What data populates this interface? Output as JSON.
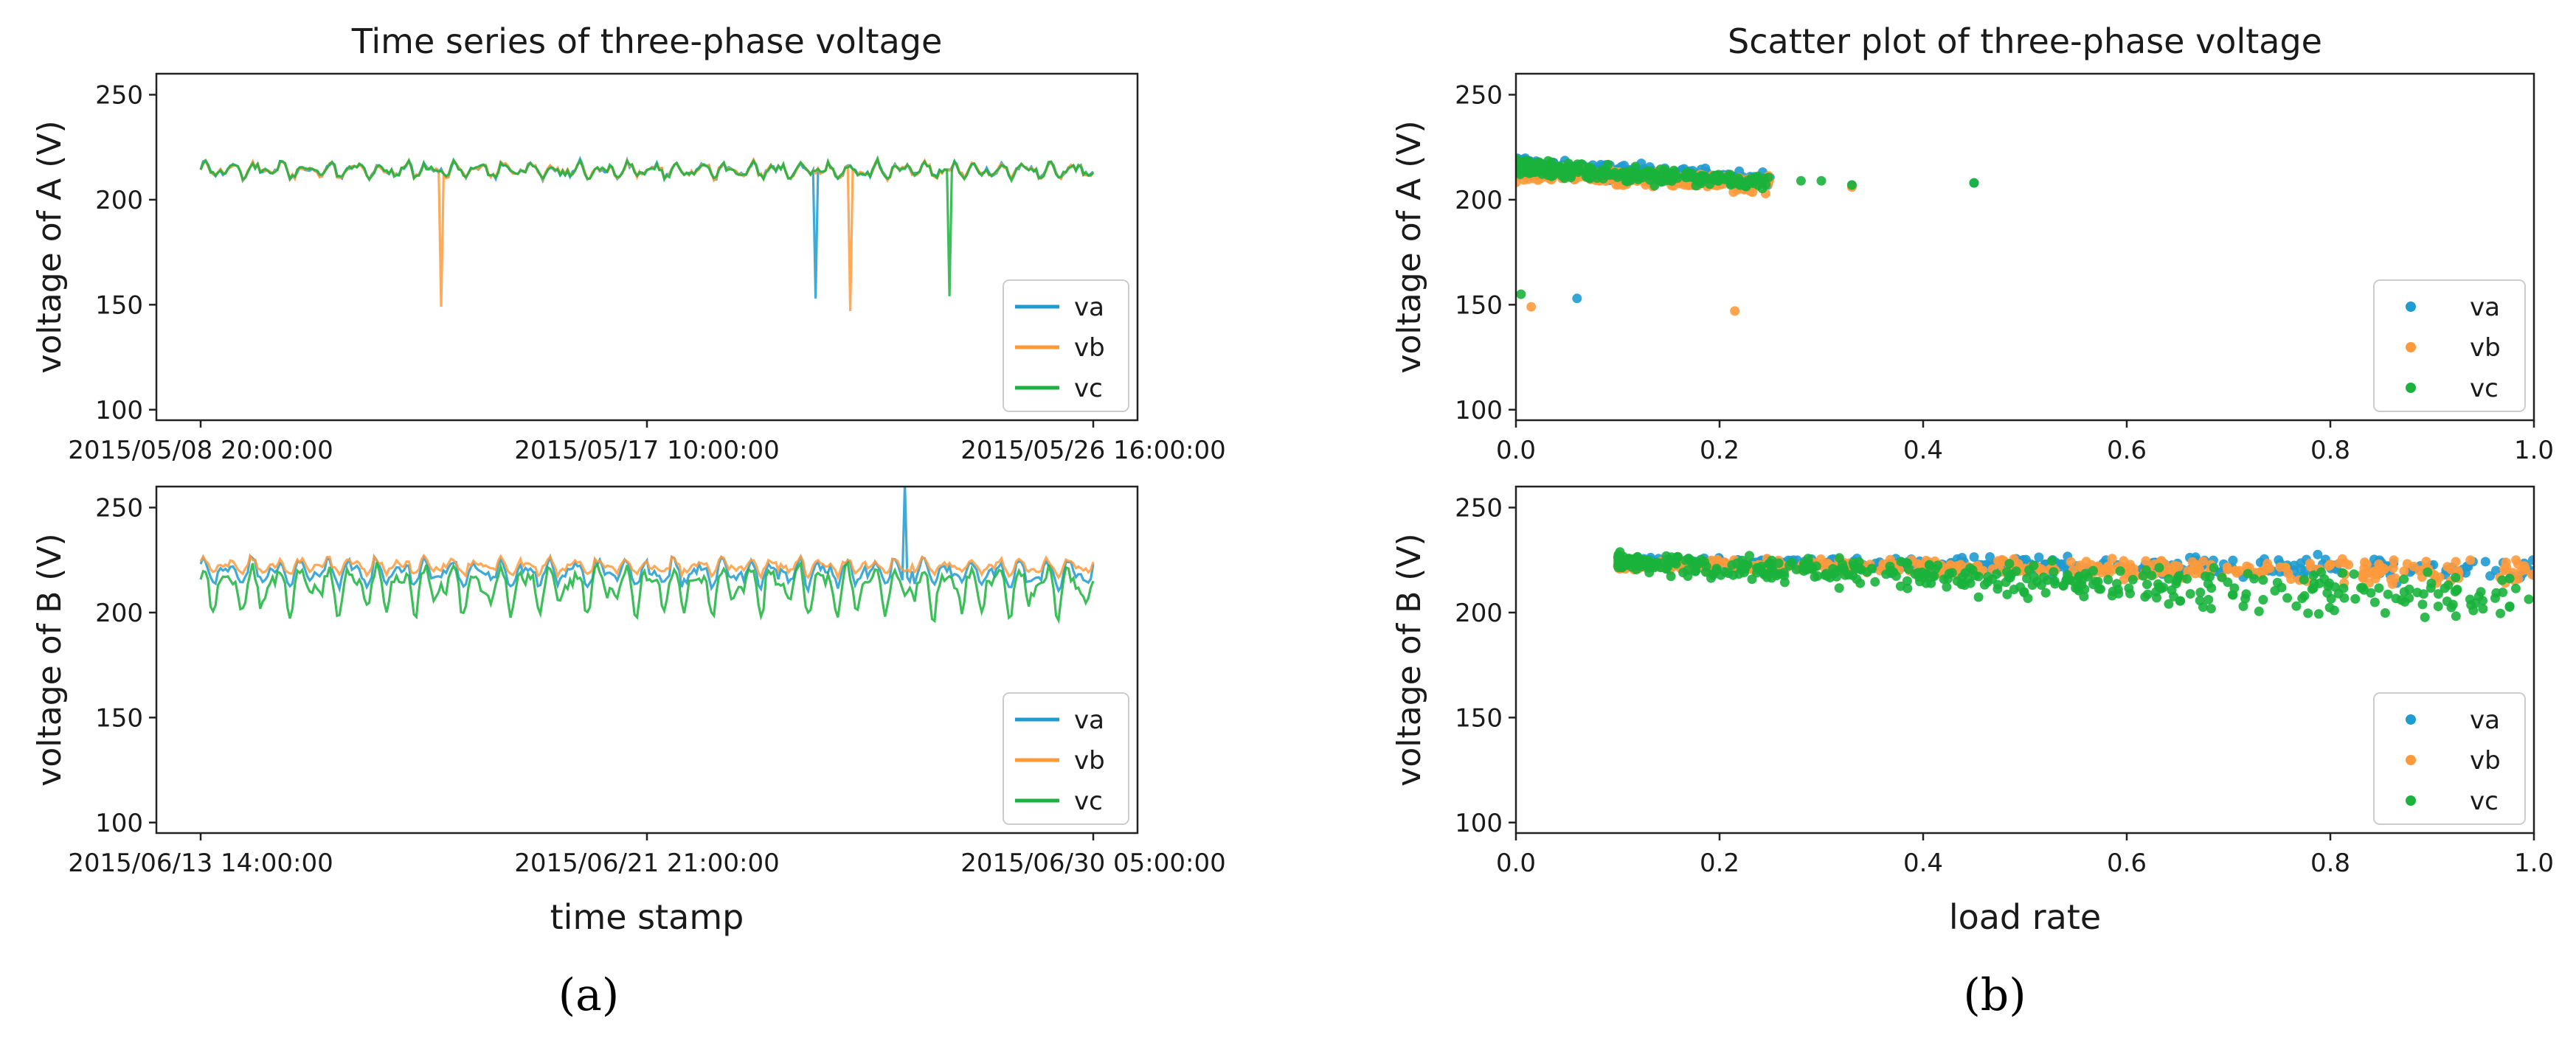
{
  "figure": {
    "caption_a": "(a)",
    "caption_b": "(b)"
  },
  "colors": {
    "va": "#1f9bd0",
    "vb": "#ff9a3c",
    "vc": "#1ab33c",
    "axis": "#222222"
  },
  "chart_data": [
    {
      "id": "ts_A",
      "type": "line",
      "title": "Time series of three-phase voltage",
      "xlabel": "",
      "ylabel": "voltage of A (V)",
      "ylim": [
        95,
        260
      ],
      "yticks": [
        100,
        150,
        200,
        250
      ],
      "xlim": [
        0,
        1
      ],
      "xticks": [
        {
          "pos": 0.0,
          "label": "2015/05/08 20:00:00"
        },
        {
          "pos": 0.5,
          "label": "2015/05/17 10:00:00"
        },
        {
          "pos": 1.0,
          "label": "2015/05/26 16:00:00"
        }
      ],
      "legend": [
        "va",
        "vb",
        "vc"
      ],
      "legend_loc": "lower-right",
      "series": [
        {
          "name": "va",
          "base": 214,
          "amp": 4,
          "noise": 1.5,
          "spikes": [
            [
              0.69,
              153
            ]
          ]
        },
        {
          "name": "vb",
          "base": 214,
          "amp": 4,
          "noise": 1.5,
          "spikes": [
            [
              0.27,
              149
            ],
            [
              0.728,
              147
            ]
          ]
        },
        {
          "name": "vc",
          "base": 214,
          "amp": 4,
          "noise": 1.5,
          "spikes": [
            [
              0.84,
              154
            ]
          ]
        }
      ]
    },
    {
      "id": "ts_B",
      "type": "line",
      "title": "",
      "xlabel": "time stamp",
      "ylabel": "voltage of B (V)",
      "ylim": [
        95,
        260
      ],
      "yticks": [
        100,
        150,
        200,
        250
      ],
      "xlim": [
        0,
        1
      ],
      "xticks": [
        {
          "pos": 0.0,
          "label": "2015/06/13 14:00:00"
        },
        {
          "pos": 0.5,
          "label": "2015/06/21 21:00:00"
        },
        {
          "pos": 1.0,
          "label": "2015/06/30 05:00:00"
        }
      ],
      "legend": [
        "va",
        "vb",
        "vc"
      ],
      "legend_loc": "lower-right",
      "series": [
        {
          "name": "va",
          "base": 219,
          "amp": 7,
          "noise": 2,
          "spikes": [
            [
              0.79,
              262
            ]
          ]
        },
        {
          "name": "vb",
          "base": 222,
          "amp": 4,
          "noise": 1.5,
          "spikes": []
        },
        {
          "name": "vc",
          "base": 214,
          "amp": 13,
          "noise": 3,
          "spikes": []
        }
      ]
    },
    {
      "id": "sc_A",
      "type": "scatter",
      "title": "Scatter plot of three-phase voltage",
      "xlabel": "",
      "ylabel": "voltage of A (V)",
      "ylim": [
        95,
        260
      ],
      "yticks": [
        100,
        150,
        200,
        250
      ],
      "xlim": [
        0,
        1
      ],
      "xticks": [
        {
          "pos": 0.0,
          "label": "0.0"
        },
        {
          "pos": 0.2,
          "label": "0.2"
        },
        {
          "pos": 0.4,
          "label": "0.4"
        },
        {
          "pos": 0.6,
          "label": "0.6"
        },
        {
          "pos": 0.8,
          "label": "0.8"
        },
        {
          "pos": 1.0,
          "label": "1.0"
        }
      ],
      "legend": [
        "va",
        "vb",
        "vc"
      ],
      "legend_loc": "lower-right",
      "series": [
        {
          "name": "va",
          "cluster": [
            0.0,
            0.25,
            216,
            4
          ],
          "points": [
            [
              0.06,
              153
            ],
            [
              0.33,
              207
            ],
            [
              0.45,
              208
            ]
          ]
        },
        {
          "name": "vb",
          "cluster": [
            0.0,
            0.25,
            213,
            4
          ],
          "points": [
            [
              0.015,
              149
            ],
            [
              0.215,
              147
            ],
            [
              0.33,
              206
            ]
          ]
        },
        {
          "name": "vc",
          "cluster": [
            0.0,
            0.25,
            215,
            4
          ],
          "points": [
            [
              0.005,
              155
            ],
            [
              0.28,
              209
            ],
            [
              0.3,
              209
            ],
            [
              0.33,
              207
            ],
            [
              0.45,
              208
            ]
          ]
        }
      ]
    },
    {
      "id": "sc_B",
      "type": "scatter",
      "title": "",
      "xlabel": "load rate",
      "ylabel": "voltage of B (V)",
      "ylim": [
        95,
        260
      ],
      "yticks": [
        100,
        150,
        200,
        250
      ],
      "xlim": [
        0,
        1
      ],
      "xticks": [
        {
          "pos": 0.0,
          "label": "0.0"
        },
        {
          "pos": 0.2,
          "label": "0.2"
        },
        {
          "pos": 0.4,
          "label": "0.4"
        },
        {
          "pos": 0.6,
          "label": "0.6"
        },
        {
          "pos": 0.8,
          "label": "0.8"
        },
        {
          "pos": 1.0,
          "label": "1.0"
        }
      ],
      "legend": [
        "va",
        "vb",
        "vc"
      ],
      "legend_loc": "lower-right",
      "series": [
        {
          "name": "va",
          "trend": [
            0.1,
            1.0,
            224,
            220,
            4
          ]
        },
        {
          "name": "vb",
          "trend": [
            0.1,
            1.0,
            223,
            219,
            4
          ]
        },
        {
          "name": "vc",
          "trend": [
            0.1,
            1.0,
            224,
            205,
            8
          ]
        }
      ]
    }
  ]
}
